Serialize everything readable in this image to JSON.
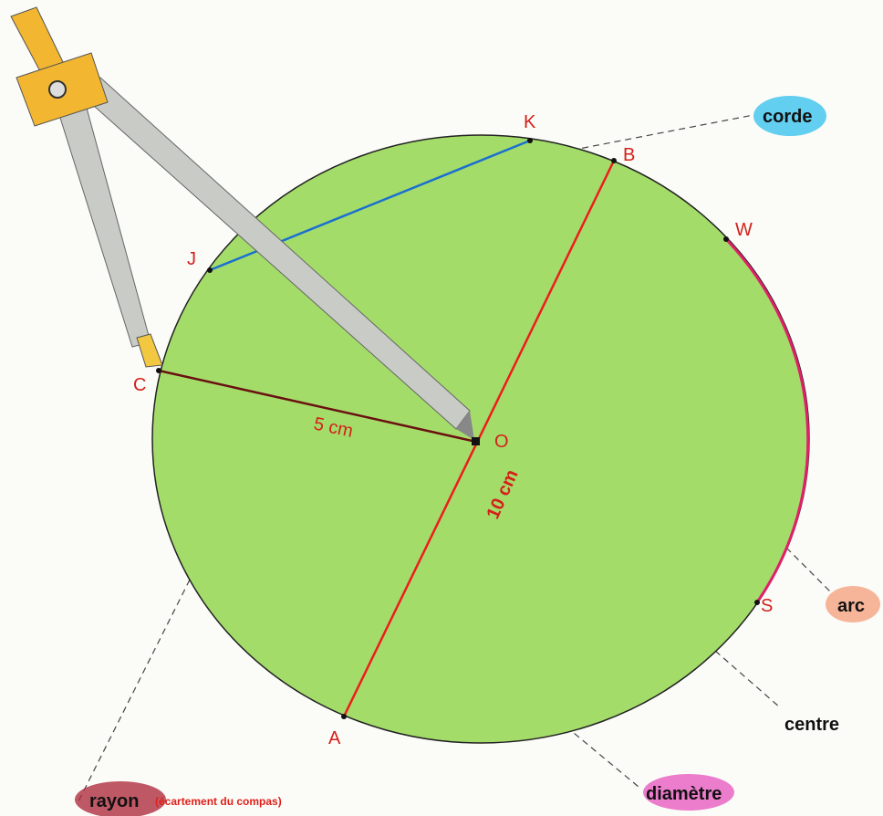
{
  "points": [
    "K",
    "B",
    "W",
    "J",
    "C",
    "O",
    "S",
    "A"
  ],
  "measures": {
    "radius": "5 cm",
    "diameter": "10 cm"
  },
  "labels": {
    "chord": "corde",
    "arc": "arc",
    "center": "centre",
    "diameter": "diamètre",
    "radius": "rayon",
    "radius_note": "(écartement du compas)"
  }
}
